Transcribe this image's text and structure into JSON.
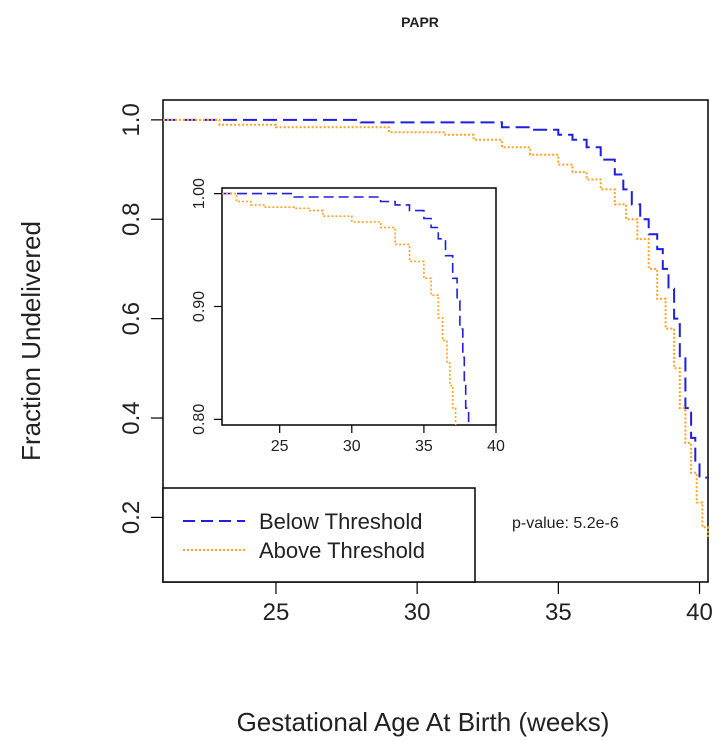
{
  "chart_data": [
    {
      "type": "line",
      "title": "PAPR",
      "xlabel": "Gestational Age At Birth (weeks)",
      "ylabel": "Fraction Undelivered",
      "xlim": [
        21,
        40.3
      ],
      "ylim": [
        0.07,
        1.04
      ],
      "xticks": [
        25,
        30,
        35,
        40
      ],
      "yticks": [
        "0.2",
        "0.4",
        "0.6",
        "0.8",
        "1.0"
      ],
      "annotation": "p-value: 5.2e-6",
      "legend_position": "bottom-left",
      "series": [
        {
          "name": "Below Threshold",
          "color": "#1f1fdc",
          "style": "dashed",
          "x": [
            21,
            22,
            24,
            26,
            28,
            30,
            31,
            32,
            33,
            34,
            35,
            35.5,
            36,
            36.5,
            37,
            37.3,
            37.6,
            37.9,
            38.2,
            38.5,
            38.7,
            38.9,
            39.1,
            39.3,
            39.5,
            39.7,
            39.85,
            40,
            40.3
          ],
          "y": [
            1.0,
            1.0,
            1.0,
            1.0,
            0.995,
            0.995,
            0.995,
            0.995,
            0.985,
            0.98,
            0.97,
            0.96,
            0.945,
            0.92,
            0.89,
            0.86,
            0.83,
            0.8,
            0.77,
            0.74,
            0.7,
            0.66,
            0.6,
            0.52,
            0.42,
            0.36,
            0.31,
            0.28,
            0.28
          ]
        },
        {
          "name": "Above Threshold",
          "color": "#ffa01e",
          "style": "dotted",
          "x": [
            21,
            22,
            23,
            25,
            27,
            29,
            31,
            32,
            33,
            34,
            35,
            35.5,
            36,
            36.5,
            37,
            37.4,
            37.8,
            38.2,
            38.5,
            38.8,
            39.1,
            39.3,
            39.5,
            39.7,
            39.9,
            40.1,
            40.3
          ],
          "y": [
            1.0,
            1.0,
            0.99,
            0.985,
            0.985,
            0.975,
            0.97,
            0.96,
            0.945,
            0.93,
            0.91,
            0.895,
            0.88,
            0.86,
            0.83,
            0.8,
            0.76,
            0.7,
            0.64,
            0.58,
            0.5,
            0.42,
            0.35,
            0.29,
            0.23,
            0.18,
            0.16
          ]
        }
      ]
    },
    {
      "type": "line",
      "title": "",
      "inset": true,
      "xlim": [
        21,
        40
      ],
      "ylim": [
        0.795,
        1.005
      ],
      "xticks": [
        25,
        30,
        35,
        40
      ],
      "yticks": [
        "0.80",
        "0.90",
        "1.00"
      ],
      "series": [
        {
          "name": "Below Threshold",
          "color": "#1f1fdc",
          "style": "dashed",
          "x": [
            21,
            25,
            26,
            28,
            31,
            32,
            33,
            34,
            35,
            35.5,
            36,
            36.5,
            37,
            37.3,
            37.5,
            37.7,
            37.8,
            37.9,
            38.1
          ],
          "y": [
            1.0,
            1.0,
            0.997,
            0.997,
            0.997,
            0.993,
            0.99,
            0.985,
            0.978,
            0.97,
            0.96,
            0.945,
            0.925,
            0.905,
            0.88,
            0.855,
            0.83,
            0.81,
            0.795
          ]
        },
        {
          "name": "Above Threshold",
          "color": "#ffa01e",
          "style": "dotted",
          "x": [
            21,
            22,
            23,
            24,
            26,
            27,
            28,
            30,
            31,
            32,
            33,
            34,
            35,
            35.5,
            36,
            36.3,
            36.6,
            36.8,
            37,
            37.2
          ],
          "y": [
            1.0,
            0.993,
            0.99,
            0.988,
            0.987,
            0.985,
            0.98,
            0.975,
            0.975,
            0.97,
            0.955,
            0.94,
            0.925,
            0.91,
            0.89,
            0.87,
            0.85,
            0.83,
            0.81,
            0.795
          ]
        }
      ]
    }
  ]
}
